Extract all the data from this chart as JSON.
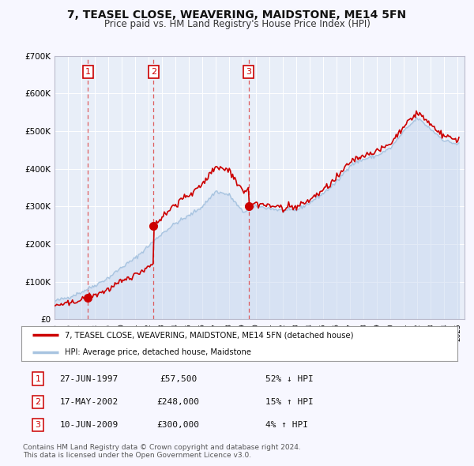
{
  "title": "7, TEASEL CLOSE, WEAVERING, MAIDSTONE, ME14 5FN",
  "subtitle": "Price paid vs. HM Land Registry's House Price Index (HPI)",
  "bg_color": "#f7f7ff",
  "plot_bg_color": "#e8eef8",
  "grid_color": "#ffffff",
  "ylim": [
    0,
    700000
  ],
  "xlim_start": 1995.0,
  "xlim_end": 2025.5,
  "transactions": [
    {
      "num": 1,
      "date": "27-JUN-1997",
      "price": 57500,
      "pct": "52%",
      "dir": "↓",
      "year": 1997.49
    },
    {
      "num": 2,
      "date": "17-MAY-2002",
      "price": 248000,
      "pct": "15%",
      "dir": "↑",
      "year": 2002.37
    },
    {
      "num": 3,
      "date": "10-JUN-2009",
      "price": 300000,
      "pct": "4%",
      "dir": "↑",
      "year": 2009.44
    }
  ],
  "legend_line1": "7, TEASEL CLOSE, WEAVERING, MAIDSTONE, ME14 5FN (detached house)",
  "legend_line2": "HPI: Average price, detached house, Maidstone",
  "footer1": "Contains HM Land Registry data © Crown copyright and database right 2024.",
  "footer2": "This data is licensed under the Open Government Licence v3.0.",
  "hpi_color": "#a8c4e0",
  "hpi_fill_color": "#c8d8f0",
  "price_color": "#cc0000",
  "marker_color": "#cc0000",
  "vline_color": "#dd4444",
  "num_box_color": "#cc0000"
}
